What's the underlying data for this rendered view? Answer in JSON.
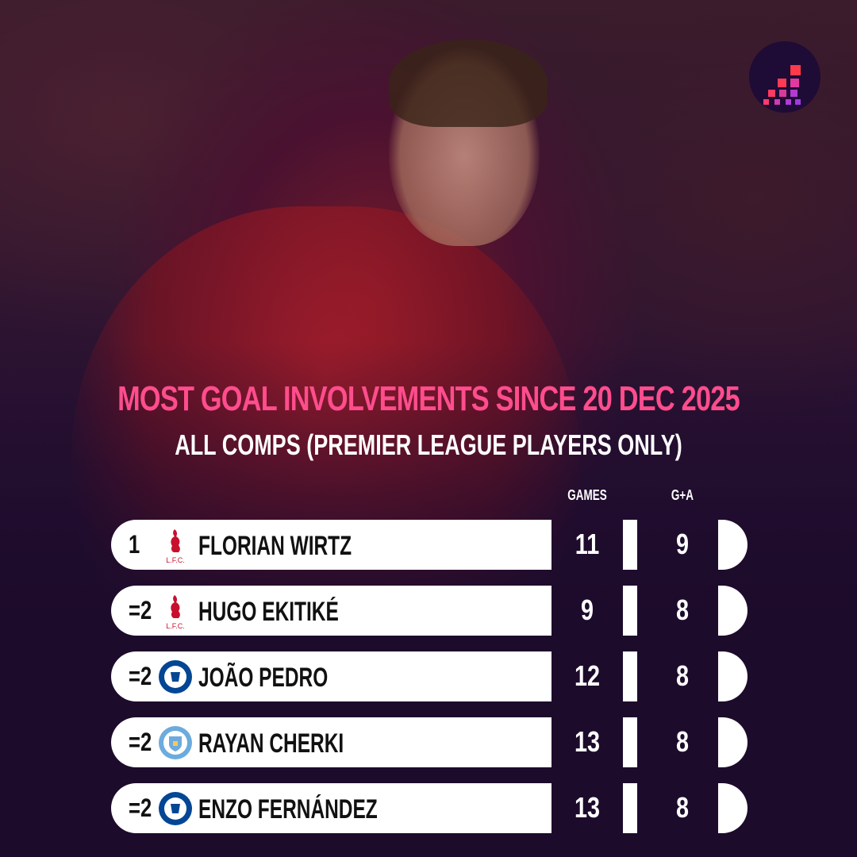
{
  "title": "MOST GOAL INVOLVEMENTS SINCE 20 DEC 2025",
  "subtitle": "ALL COMPS (PREMIER LEAGUE PLAYERS ONLY)",
  "columns": {
    "games": "GAMES",
    "ga": "G+A"
  },
  "colors": {
    "accent": "#ff4d8d",
    "background": "#1d0b2c",
    "liverpool": "#c8102e",
    "chelsea": "#034694",
    "mancity": "#6cabdd"
  },
  "rows": [
    {
      "rank": "1",
      "club": "liverpool-crest",
      "name": "FLORIAN WIRTZ",
      "games": "11",
      "ga": "9"
    },
    {
      "rank": "=2",
      "club": "liverpool-crest",
      "name": "HUGO EKITIKÉ",
      "games": "9",
      "ga": "8"
    },
    {
      "rank": "=2",
      "club": "chelsea-crest",
      "name": "JOÃO PEDRO",
      "games": "12",
      "ga": "8"
    },
    {
      "rank": "=2",
      "club": "man-city-crest",
      "name": "RAYAN CHERKI",
      "games": "13",
      "ga": "8"
    },
    {
      "rank": "=2",
      "club": "chelsea-crest",
      "name": "ENZO FERNÁNDEZ",
      "games": "13",
      "ga": "8"
    }
  ]
}
